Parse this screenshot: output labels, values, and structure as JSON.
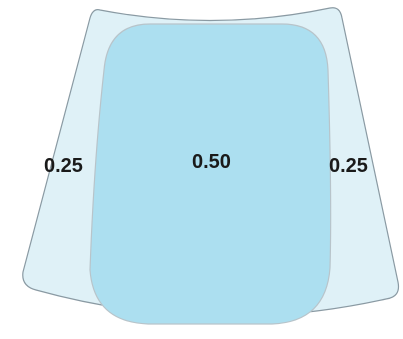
{
  "diagram": {
    "regions": [
      {
        "id": "left",
        "label": "0.25",
        "color": "#dff1f7"
      },
      {
        "id": "center",
        "label": "0.50",
        "color": "#acdff0"
      },
      {
        "id": "right",
        "label": "0.25",
        "color": "#dff1f7"
      }
    ],
    "outline_color": "#8a9aa3",
    "inner_outline_color": "#b8c4ca"
  }
}
